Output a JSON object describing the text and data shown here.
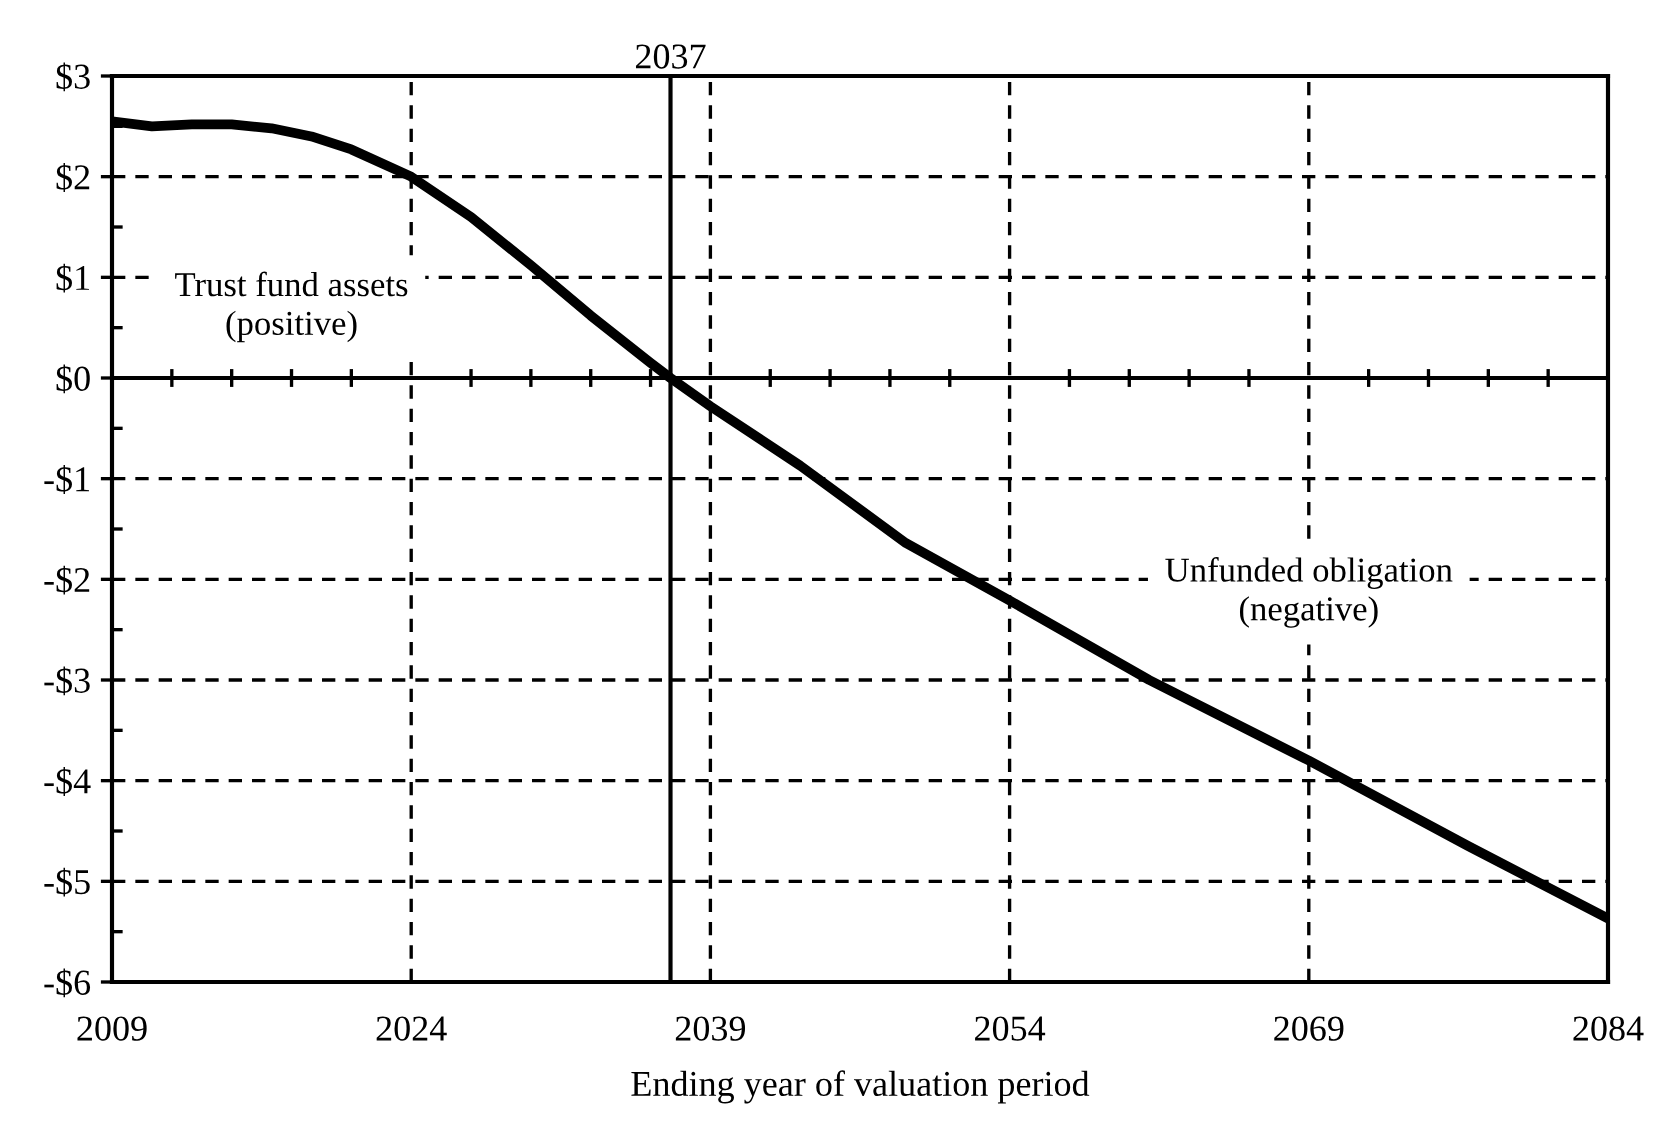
{
  "chart_data": {
    "type": "line",
    "xlabel": "Ending year of valuation period",
    "x": [
      2009,
      2011,
      2013,
      2015,
      2017,
      2019,
      2021,
      2024,
      2027,
      2030,
      2033,
      2036,
      2037,
      2039,
      2043.5,
      2048.8,
      2054,
      2061,
      2069,
      2077,
      2084
    ],
    "series": [
      {
        "color": "#000000",
        "values": [
          2.55,
          2.5,
          2.52,
          2.52,
          2.48,
          2.4,
          2.27,
          2.0,
          1.6,
          1.12,
          0.62,
          0.15,
          0.0,
          -0.28,
          -0.87,
          -1.64,
          -2.21,
          -3.0,
          -3.8,
          -4.65,
          -5.37
        ]
      }
    ],
    "xlim": [
      2009,
      2084
    ],
    "xticks": [
      2009,
      2024,
      2039,
      2054,
      2069,
      2084
    ],
    "ylim": [
      -6,
      3
    ],
    "yticks": [
      {
        "value": -6,
        "label": "-$6"
      },
      {
        "value": -5,
        "label": "-$5"
      },
      {
        "value": -4,
        "label": "-$4"
      },
      {
        "value": -3,
        "label": "-$3"
      },
      {
        "value": -2,
        "label": "-$2"
      },
      {
        "value": -1,
        "label": "-$1"
      },
      {
        "value": 0,
        "label": "$0"
      },
      {
        "value": 1,
        "label": "$1"
      },
      {
        "value": 2,
        "label": "$2"
      },
      {
        "value": 3,
        "label": "$3"
      }
    ],
    "ref_lines": [
      {
        "axis": "x",
        "value": 2037,
        "label": "2037",
        "color": "#000000",
        "line_style": "solid"
      },
      {
        "axis": "y",
        "value": 0,
        "label": null,
        "color": "#000000",
        "line_style": "solid"
      }
    ],
    "annotations": [
      "Trust fund assets\n(positive)",
      "Unfunded obligation\n(negative)"
    ],
    "grid": true,
    "line_style": "solid"
  }
}
